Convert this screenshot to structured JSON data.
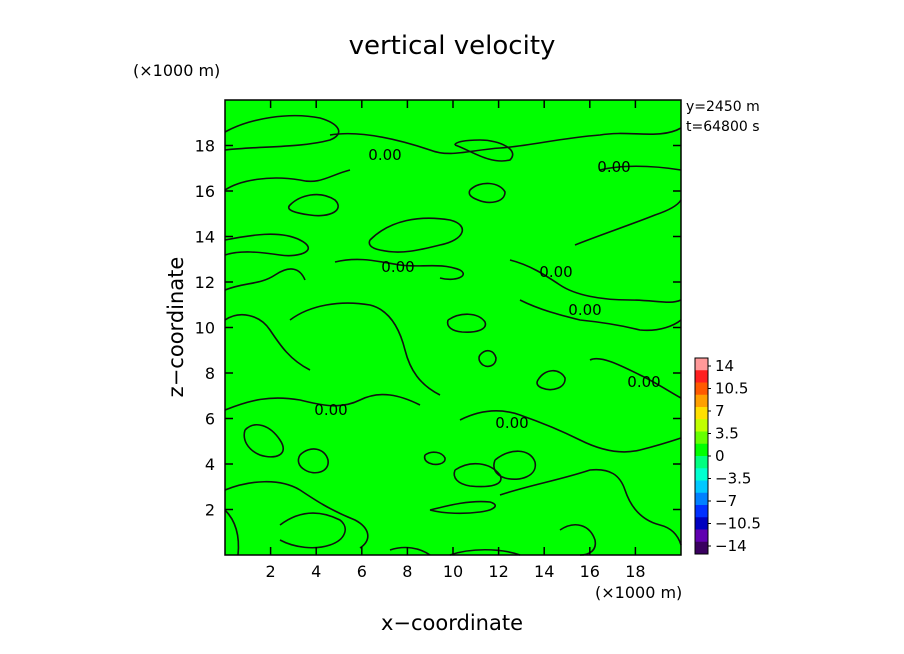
{
  "chart_data": {
    "type": "heatmap",
    "title": "vertical velocity",
    "xlabel": "x−coordinate",
    "ylabel": "z−coordinate",
    "x_unit": "(×1000 m)",
    "y_unit": "(×1000 m)",
    "xlim": [
      0,
      20
    ],
    "ylim": [
      0,
      20
    ],
    "x_ticks": [
      2,
      4,
      6,
      8,
      10,
      12,
      14,
      16,
      18
    ],
    "y_ticks": [
      2,
      4,
      6,
      8,
      10,
      12,
      14,
      16,
      18
    ],
    "x_tick_labels": [
      "2",
      "4",
      "6",
      "8",
      "10",
      "12",
      "14",
      "16",
      "18"
    ],
    "y_tick_labels": [
      "2",
      "4",
      "6",
      "8",
      "10",
      "12",
      "14",
      "16",
      "18"
    ],
    "info": [
      "y=2450 m",
      "t=64800 s"
    ],
    "field_value_approx": 0,
    "fill_color": "#00ff00",
    "contour_level": "0.00",
    "contour_labels": [
      {
        "x": 6.8,
        "z": 17.6,
        "text": "0.00"
      },
      {
        "x": 17.0,
        "z": 17.0,
        "text": "0.00"
      },
      {
        "x": 7.6,
        "z": 12.8,
        "text": "0.00"
      },
      {
        "x": 14.4,
        "z": 12.3,
        "text": "0.00"
      },
      {
        "x": 15.8,
        "z": 10.7,
        "text": "0.00"
      },
      {
        "x": 18.4,
        "z": 7.6,
        "text": "0.00"
      },
      {
        "x": 4.8,
        "z": 6.3,
        "text": "0.00"
      },
      {
        "x": 12.6,
        "z": 5.8,
        "text": "0.00"
      }
    ],
    "colorbar": {
      "labels": [
        "14",
        "10.5",
        "7",
        "3.5",
        "0",
        "−3.5",
        "−7",
        "−10.5",
        "−14"
      ],
      "colors": [
        "#ff9999",
        "#ff2020",
        "#ff5a00",
        "#ffa000",
        "#ffe000",
        "#c0ff00",
        "#66ff00",
        "#00ff00",
        "#00ff80",
        "#00ffd0",
        "#00c8ff",
        "#0080ff",
        "#0030ff",
        "#0000c0",
        "#6000b0",
        "#3a0060"
      ]
    }
  }
}
